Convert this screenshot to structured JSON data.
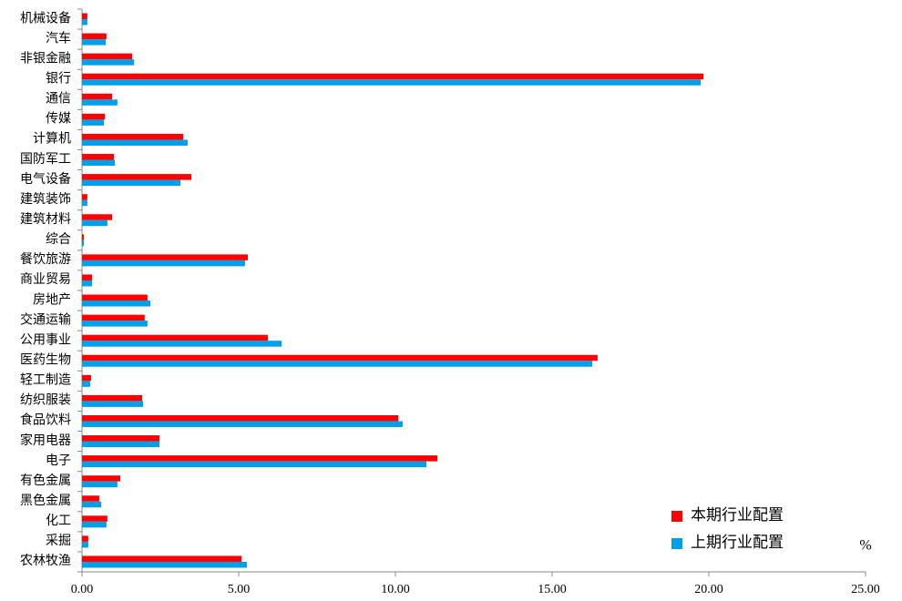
{
  "chart_data": {
    "type": "hbar",
    "categories": [
      "机械设备",
      "汽车",
      "非银金融",
      "银行",
      "通信",
      "传媒",
      "计算机",
      "国防军工",
      "电气设备",
      "建筑装饰",
      "建筑材料",
      "综合",
      "餐饮旅游",
      "商业贸易",
      "房地产",
      "交通运输",
      "公用事业",
      "医药生物",
      "轻工制造",
      "纺织服装",
      "食品饮料",
      "家用电器",
      "电子",
      "有色金属",
      "黑色金属",
      "化工",
      "采掘",
      "农林牧渔"
    ],
    "series": [
      {
        "name": "本期行业配置",
        "color": "#ff0000",
        "values": [
          0.17,
          0.78,
          1.6,
          19.83,
          0.96,
          0.73,
          3.23,
          1.02,
          3.49,
          0.17,
          0.96,
          0.06,
          5.29,
          0.32,
          2.09,
          2.0,
          5.93,
          16.45,
          0.29,
          1.92,
          10.09,
          2.47,
          11.34,
          1.22,
          0.55,
          0.81,
          0.2,
          5.09
        ]
      },
      {
        "name": "上期行业配置",
        "color": "#00a0e8",
        "values": [
          0.17,
          0.76,
          1.66,
          19.74,
          1.13,
          0.7,
          3.37,
          1.05,
          3.14,
          0.17,
          0.81,
          0.06,
          5.2,
          0.32,
          2.18,
          2.09,
          6.37,
          16.28,
          0.26,
          1.95,
          10.23,
          2.47,
          10.99,
          1.13,
          0.61,
          0.78,
          0.2,
          5.26
        ]
      }
    ],
    "xlabel": "%",
    "xlim": [
      0,
      25
    ],
    "xticks": [
      {
        "value": 0,
        "label": "0.00"
      },
      {
        "value": 5,
        "label": "5.00"
      },
      {
        "value": 10,
        "label": "10.00"
      },
      {
        "value": 15,
        "label": "15.00"
      },
      {
        "value": 20,
        "label": "20.00"
      },
      {
        "value": 25,
        "label": "25.00"
      }
    ],
    "legend": "lower right"
  }
}
